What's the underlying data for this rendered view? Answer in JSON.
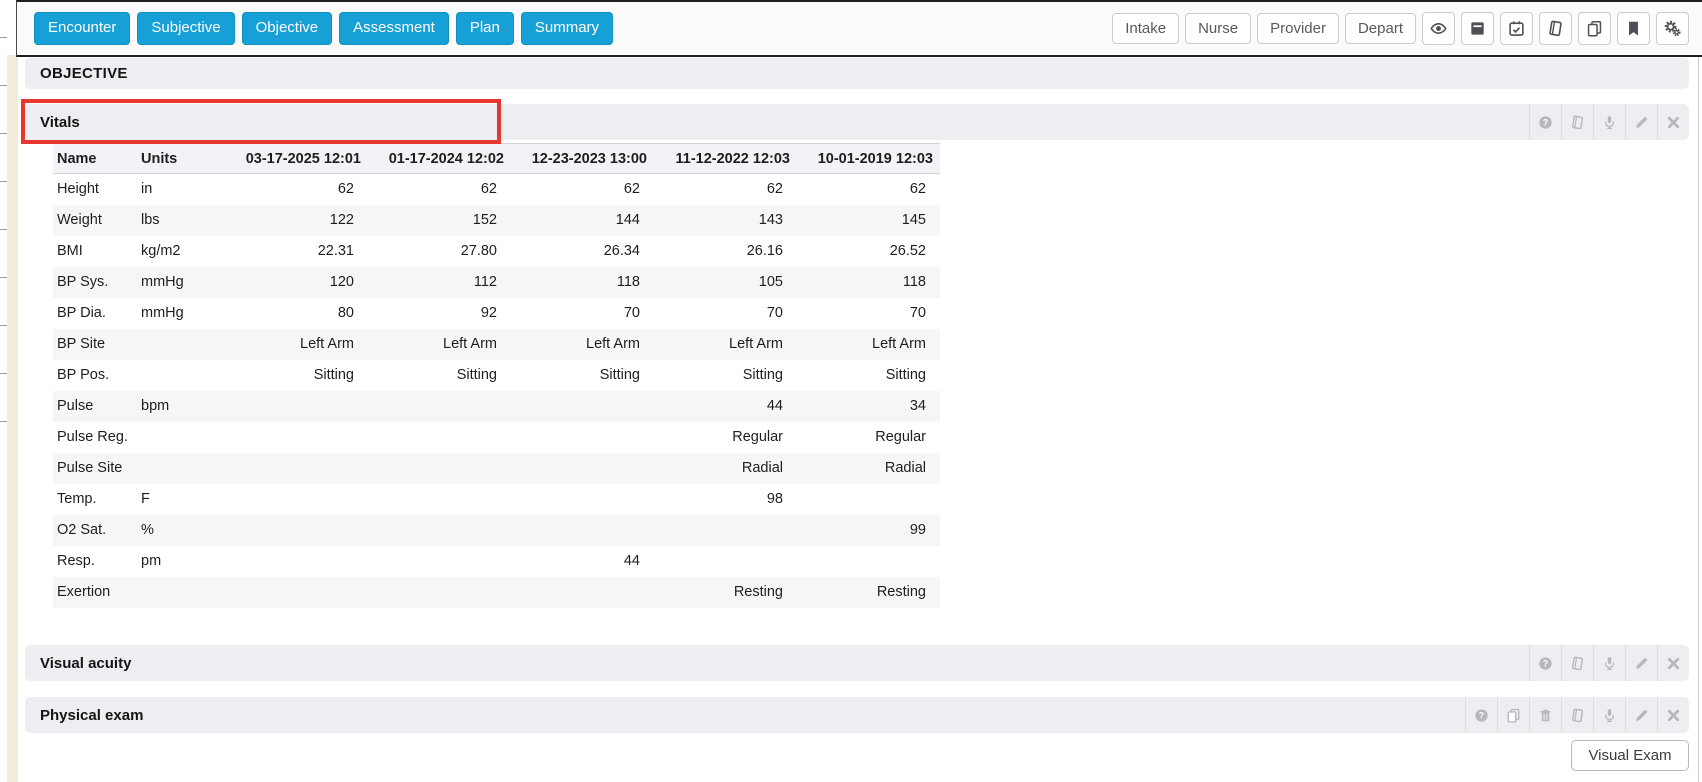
{
  "navbar": {
    "left_buttons": [
      "Encounter",
      "Subjective",
      "Objective",
      "Assessment",
      "Plan",
      "Summary"
    ],
    "right_buttons": [
      "Intake",
      "Nurse",
      "Provider",
      "Depart"
    ],
    "right_icons": [
      "eye",
      "archive",
      "calendar-check",
      "book",
      "copy",
      "bookmark",
      "gears"
    ]
  },
  "page": {
    "section_heading": "OBJECTIVE"
  },
  "vitals": {
    "title": "Vitals",
    "icons": [
      "help",
      "book",
      "microphone",
      "pencil",
      "close"
    ],
    "table": {
      "columns": [
        "Name",
        "Units",
        "03-17-2025 12:01",
        "01-17-2024 12:02",
        "12-23-2023 13:00",
        "11-12-2022 12:03",
        "10-01-2019 12:03"
      ],
      "rows": [
        [
          "Height",
          "in",
          "62",
          "62",
          "62",
          "62",
          "62"
        ],
        [
          "Weight",
          "lbs",
          "122",
          "152",
          "144",
          "143",
          "145"
        ],
        [
          "BMI",
          "kg/m2",
          "22.31",
          "27.80",
          "26.34",
          "26.16",
          "26.52"
        ],
        [
          "BP Sys.",
          "mmHg",
          "120",
          "112",
          "118",
          "105",
          "118"
        ],
        [
          "BP Dia.",
          "mmHg",
          "80",
          "92",
          "70",
          "70",
          "70"
        ],
        [
          "BP Site",
          "",
          "Left Arm",
          "Left Arm",
          "Left Arm",
          "Left Arm",
          "Left Arm"
        ],
        [
          "BP Pos.",
          "",
          "Sitting",
          "Sitting",
          "Sitting",
          "Sitting",
          "Sitting"
        ],
        [
          "Pulse",
          "bpm",
          "",
          "",
          "",
          "44",
          "34"
        ],
        [
          "Pulse Reg.",
          "",
          "",
          "",
          "",
          "Regular",
          "Regular"
        ],
        [
          "Pulse Site",
          "",
          "",
          "",
          "",
          "Radial",
          "Radial"
        ],
        [
          "Temp.",
          "F",
          "",
          "",
          "",
          "98",
          ""
        ],
        [
          "O2 Sat.",
          "%",
          "",
          "",
          "",
          "",
          "99"
        ],
        [
          "Resp.",
          "pm",
          "",
          "",
          "44",
          "",
          ""
        ],
        [
          "Exertion",
          "",
          "",
          "",
          "",
          "Resting",
          "Resting"
        ]
      ]
    }
  },
  "sections": [
    {
      "id": "visual-acuity",
      "title": "Visual acuity",
      "icons": [
        "help",
        "book",
        "microphone",
        "pencil",
        "close"
      ]
    },
    {
      "id": "physical-exam",
      "title": "Physical exam",
      "icons": [
        "help",
        "copy",
        "trash",
        "book",
        "microphone",
        "pencil",
        "close"
      ]
    }
  ],
  "footer": {
    "visual_exam_label": "Visual Exam"
  },
  "annotation": {
    "highlighted_section": "Vitals",
    "color": "#e8372c"
  },
  "colors": {
    "accent_blue": "#17a0d6",
    "section_bar_bg": "#edeef2",
    "row_stripe": "#f5f6f8",
    "annotation_red": "#e8372c",
    "page_edge_beige": "#f1edda"
  }
}
